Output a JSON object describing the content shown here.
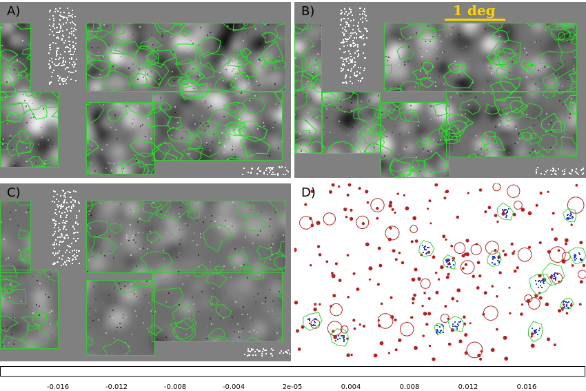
{
  "panels": {
    "a": {
      "label": "A)"
    },
    "b": {
      "label": "B)"
    },
    "c": {
      "label": "C)"
    },
    "d": {
      "label": "D)"
    }
  },
  "scale_bar": {
    "label": "1 deg"
  },
  "colorbar": {
    "ticks": [
      "-0.016",
      "-0.012",
      "-0.008",
      "-0.004",
      "2e-05",
      "0.004",
      "0.008",
      "0.012",
      "0.016"
    ],
    "gradient_start": "#000000",
    "gradient_end": "#ffffff"
  },
  "colors": {
    "background_gray": "#808080",
    "contour_green": "#33cc33",
    "bright_green": "#22ee22",
    "source_red": "#b22222",
    "detection_blue": "#1f3fbf",
    "scale_yellow": "#ffd400"
  }
}
